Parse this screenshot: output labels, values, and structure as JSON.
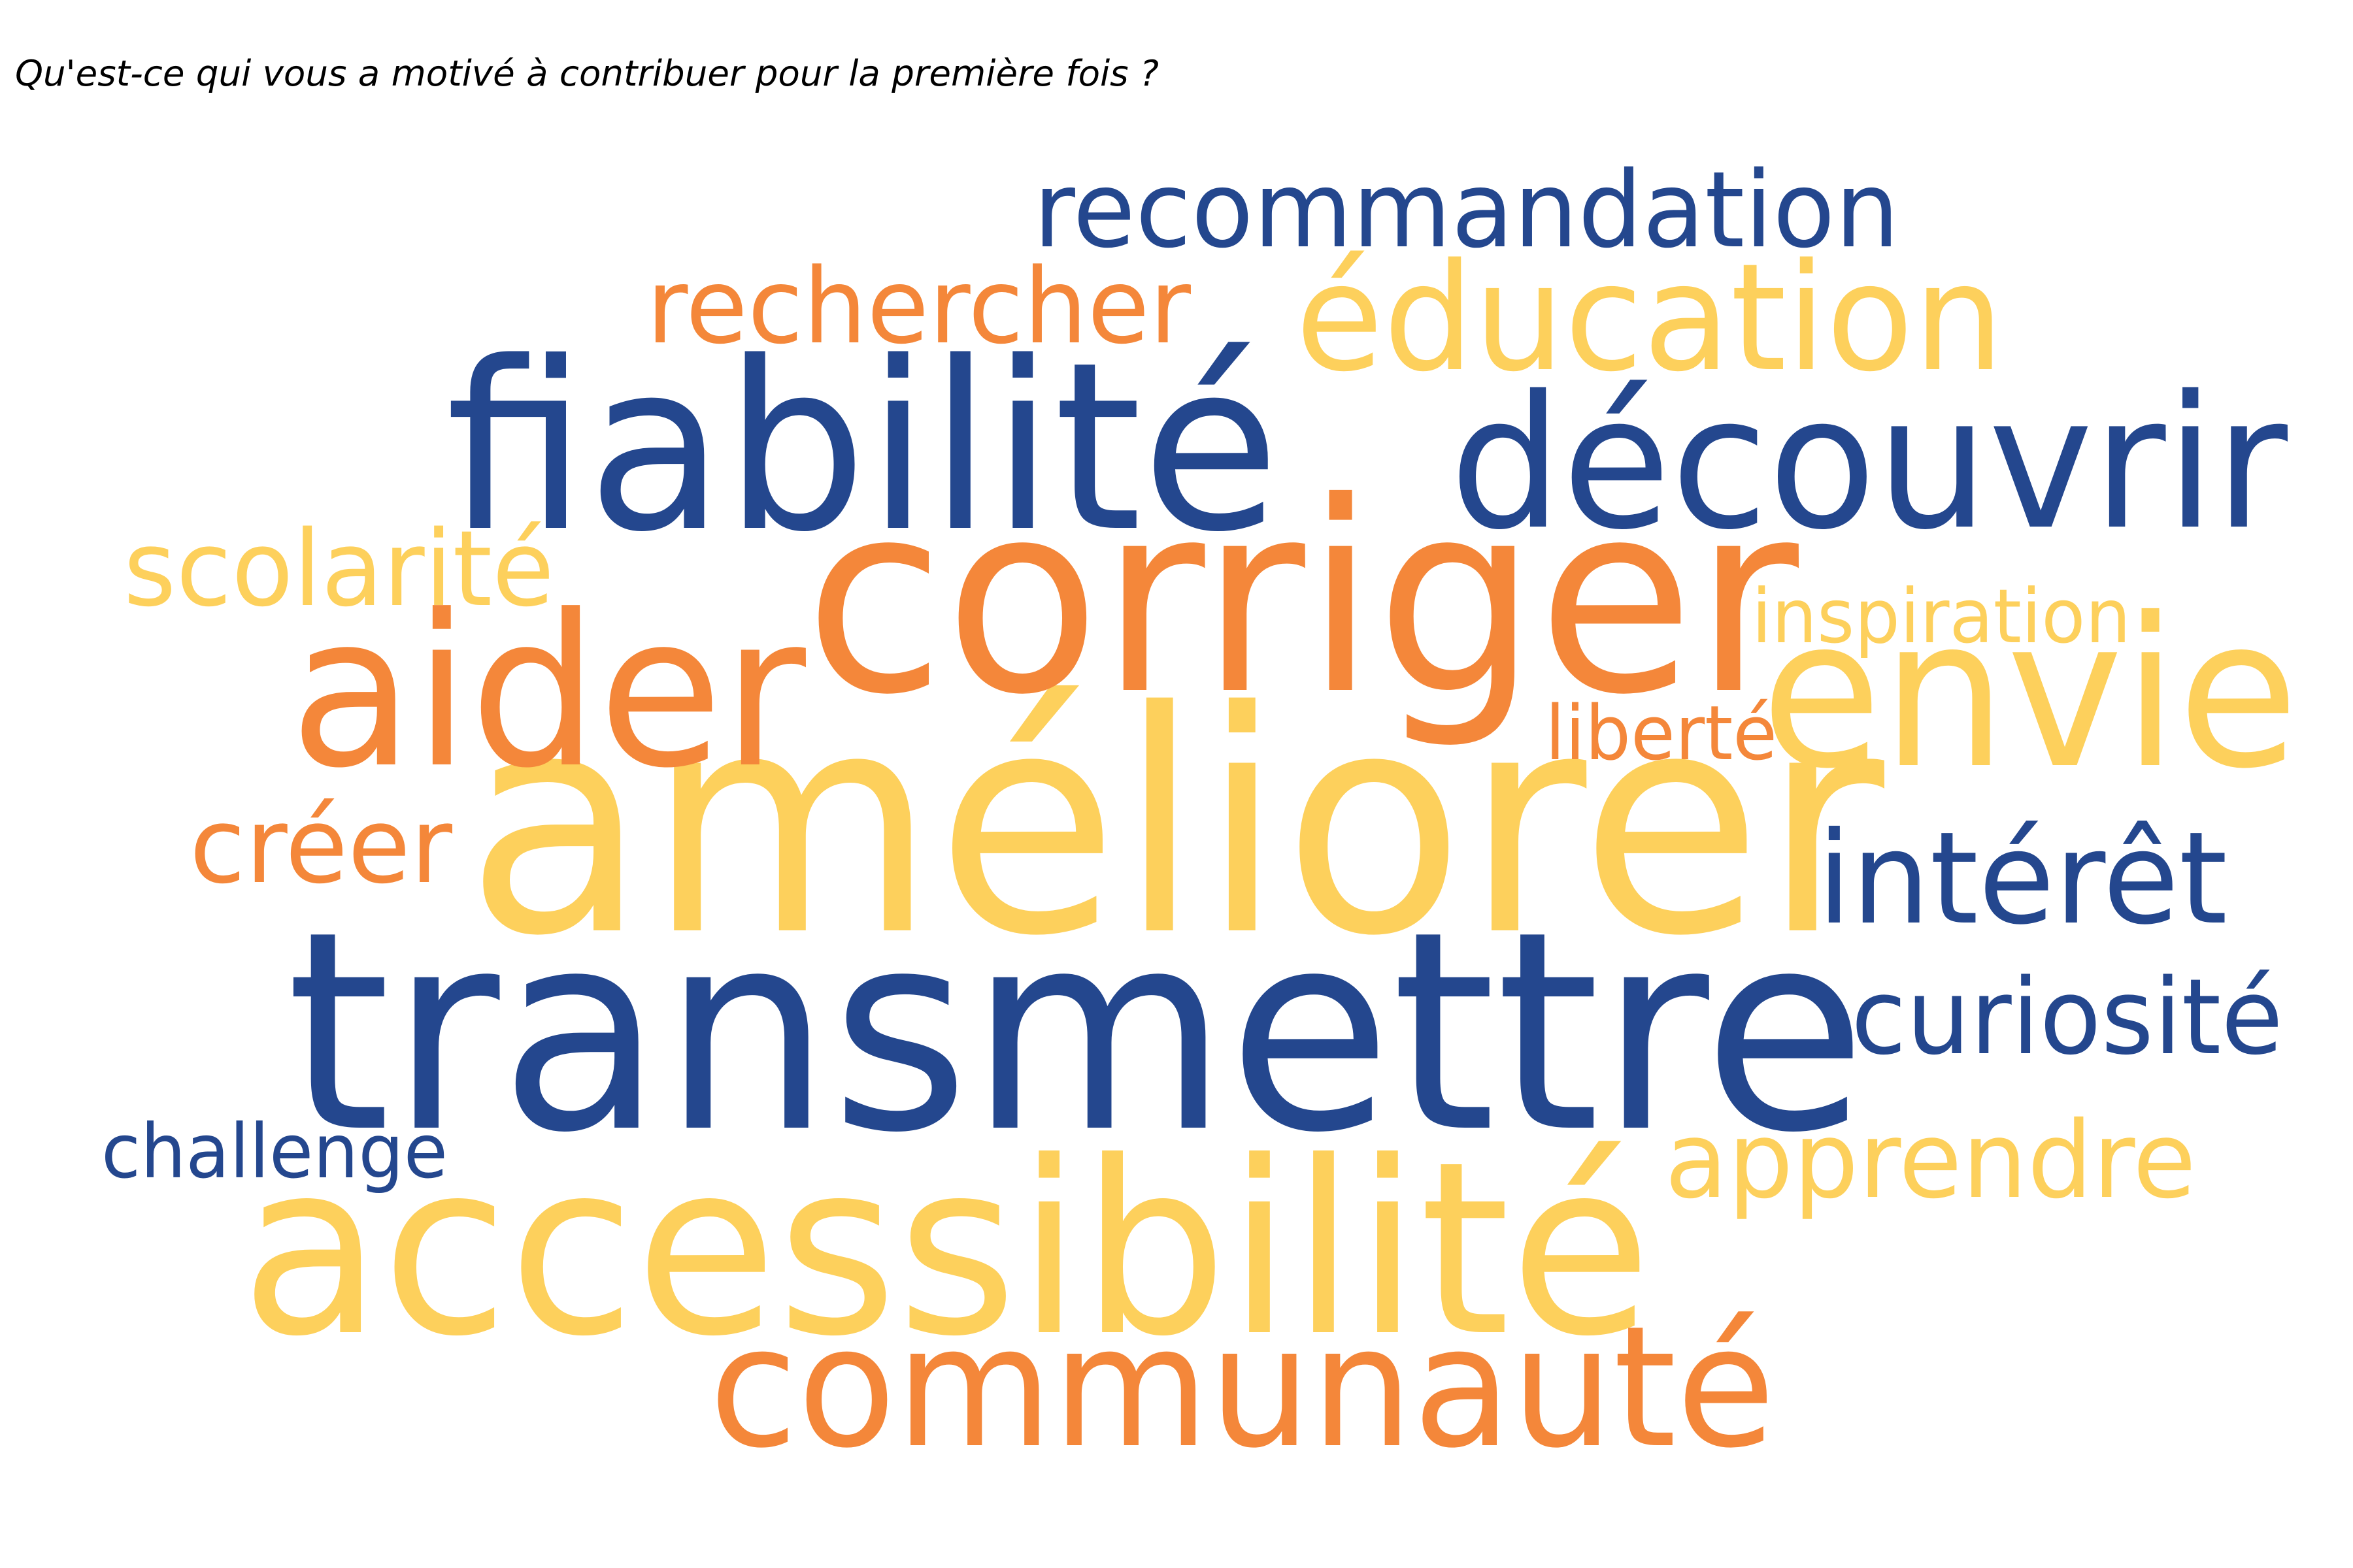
{
  "title": "Qu'est-ce qui vous a motivé à contribuer pour la première fois ?",
  "title_color": "#000000",
  "background": "#ffffff",
  "words": [
    {
      "text": "transmettre",
      "color": "#24478e"
    },
    {
      "text": "améliorer",
      "color": "#fdd05c"
    },
    {
      "text": "corriger",
      "color": "#f4873a"
    },
    {
      "text": "accessibilité",
      "color": "#fdd05c"
    },
    {
      "text": "fiabilité",
      "color": "#24478e"
    },
    {
      "text": "découvrir",
      "color": "#24478e"
    },
    {
      "text": "aider",
      "color": "#f4873a"
    },
    {
      "text": "envie",
      "color": "#fdd05c"
    },
    {
      "text": "communauté",
      "color": "#f4873a"
    },
    {
      "text": "éducation",
      "color": "#fdd05c"
    },
    {
      "text": "intérêt",
      "color": "#24478e"
    },
    {
      "text": "recommandation",
      "color": "#24478e"
    },
    {
      "text": "rechercher",
      "color": "#f4873a"
    },
    {
      "text": "scolarité",
      "color": "#fdd05c"
    },
    {
      "text": "créer",
      "color": "#f4873a"
    },
    {
      "text": "curiosité",
      "color": "#24478e"
    },
    {
      "text": "apprendre",
      "color": "#fdd05c"
    },
    {
      "text": "inspiration",
      "color": "#fdd05c"
    },
    {
      "text": "liberté",
      "color": "#f4873a"
    },
    {
      "text": "challenge",
      "color": "#24478e"
    }
  ]
}
